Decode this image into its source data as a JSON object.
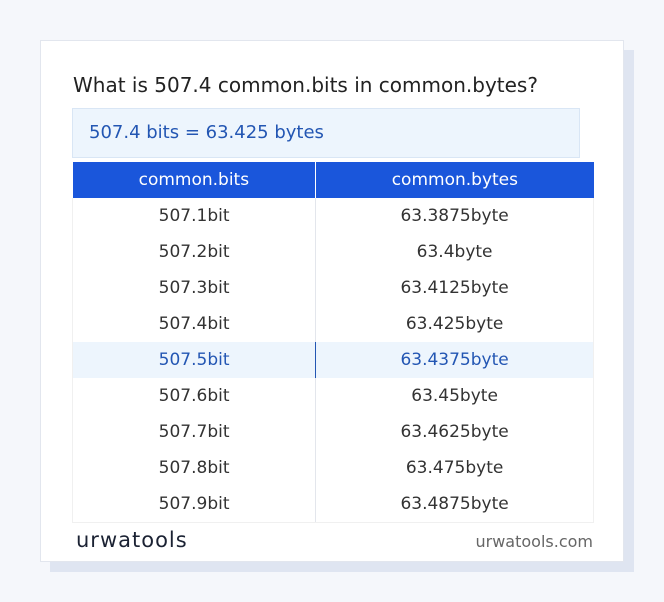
{
  "title": "What is 507.4 common.bits in common.bytes?",
  "result": "507.4 bits = 63.425 bytes",
  "table": {
    "headers": [
      "common.bits",
      "common.bytes"
    ],
    "rows": [
      [
        "507.1bit",
        "63.3875byte"
      ],
      [
        "507.2bit",
        "63.4byte"
      ],
      [
        "507.3bit",
        "63.4125byte"
      ],
      [
        "507.4bit",
        "63.425byte"
      ],
      [
        "507.5bit",
        "63.4375byte"
      ],
      [
        "507.6bit",
        "63.45byte"
      ],
      [
        "507.7bit",
        "63.4625byte"
      ],
      [
        "507.8bit",
        "63.475byte"
      ],
      [
        "507.9bit",
        "63.4875byte"
      ]
    ],
    "highlighted_row": 4
  },
  "footer": {
    "logo": "urwatools",
    "site": "urwatools.com"
  }
}
